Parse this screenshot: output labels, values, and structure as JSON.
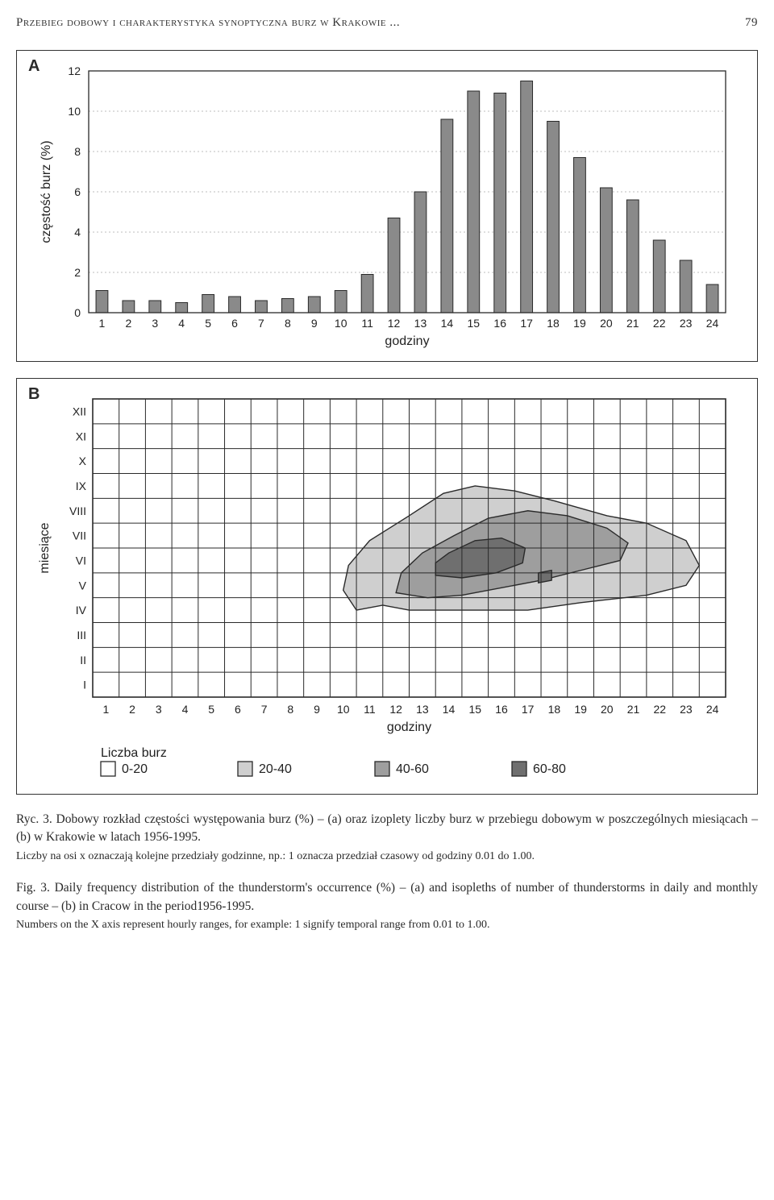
{
  "header": {
    "title": "Przebieg dobowy i charakterystyka synoptyczna burz w Krakowie ...",
    "page_number": "79"
  },
  "panelA": {
    "label": "A",
    "type": "bar",
    "ylabel": "częstość burz (%)",
    "xlabel": "godziny",
    "categories": [
      "1",
      "2",
      "3",
      "4",
      "5",
      "6",
      "7",
      "8",
      "9",
      "10",
      "11",
      "12",
      "13",
      "14",
      "15",
      "16",
      "17",
      "18",
      "19",
      "20",
      "21",
      "22",
      "23",
      "24"
    ],
    "values": [
      1.1,
      0.6,
      0.6,
      0.5,
      0.9,
      0.8,
      0.6,
      0.7,
      0.8,
      1.1,
      1.9,
      4.7,
      6.0,
      9.6,
      11.0,
      10.9,
      11.5,
      9.5,
      7.7,
      6.2,
      5.6,
      3.6,
      2.6,
      1.4
    ],
    "ylim": [
      0,
      12
    ],
    "ytick_step": 2,
    "bar_color": "#8a8a8a",
    "bar_border": "#2a2a2a",
    "grid_color": "#bdbdbd",
    "background_color": "#ffffff",
    "bar_width": 0.45,
    "label_fontsize": 16,
    "tick_fontsize": 14
  },
  "panelB": {
    "label": "B",
    "type": "contour",
    "ylabel": "miesiące",
    "xlabel": "godziny",
    "x_categories": [
      "1",
      "2",
      "3",
      "4",
      "5",
      "6",
      "7",
      "8",
      "9",
      "10",
      "11",
      "12",
      "13",
      "14",
      "15",
      "16",
      "17",
      "18",
      "19",
      "20",
      "21",
      "22",
      "23",
      "24"
    ],
    "y_categories": [
      "I",
      "II",
      "III",
      "IV",
      "V",
      "VI",
      "VII",
      "VIII",
      "IX",
      "X",
      "XI",
      "XII"
    ],
    "legend_title": "Liczba burz",
    "legend_items": [
      {
        "label": "0-20",
        "fill": "#ffffff",
        "stroke": "#2a2a2a"
      },
      {
        "label": "20-40",
        "fill": "#cfcfcf",
        "stroke": "#2a2a2a"
      },
      {
        "label": "40-60",
        "fill": "#9e9e9e",
        "stroke": "#2a2a2a"
      },
      {
        "label": "60-80",
        "fill": "#6f6f6f",
        "stroke": "#2a2a2a"
      }
    ],
    "grid_color": "#2a2a2a",
    "background_color": "#ffffff",
    "contours": [
      {
        "level": "20-40",
        "fill": "#cfcfcf",
        "stroke": "#2a2a2a",
        "points": [
          [
            10.5,
            4.0
          ],
          [
            11.5,
            4.2
          ],
          [
            12.5,
            4.0
          ],
          [
            13.5,
            4.0
          ],
          [
            15.0,
            4.0
          ],
          [
            17.0,
            4.0
          ],
          [
            19.0,
            4.3
          ],
          [
            21.5,
            4.6
          ],
          [
            23.0,
            5.0
          ],
          [
            23.5,
            5.8
          ],
          [
            23.0,
            6.8
          ],
          [
            21.5,
            7.5
          ],
          [
            20.0,
            7.8
          ],
          [
            18.0,
            8.4
          ],
          [
            16.5,
            8.8
          ],
          [
            15.0,
            9.0
          ],
          [
            13.8,
            8.7
          ],
          [
            12.5,
            7.8
          ],
          [
            11.0,
            6.8
          ],
          [
            10.2,
            5.8
          ],
          [
            10.0,
            4.8
          ]
        ]
      },
      {
        "level": "40-60",
        "fill": "#9e9e9e",
        "stroke": "#2a2a2a",
        "points": [
          [
            12.0,
            4.7
          ],
          [
            13.2,
            4.5
          ],
          [
            14.5,
            4.6
          ],
          [
            16.0,
            4.9
          ],
          [
            17.5,
            5.2
          ],
          [
            19.0,
            5.6
          ],
          [
            20.5,
            6.0
          ],
          [
            20.8,
            6.7
          ],
          [
            20.0,
            7.3
          ],
          [
            18.5,
            7.8
          ],
          [
            17.0,
            8.0
          ],
          [
            15.5,
            7.7
          ],
          [
            14.2,
            7.0
          ],
          [
            13.0,
            6.3
          ],
          [
            12.2,
            5.5
          ]
        ]
      },
      {
        "level": "60-80",
        "fill": "#6f6f6f",
        "stroke": "#2a2a2a",
        "points": [
          [
            13.5,
            5.4
          ],
          [
            14.5,
            5.3
          ],
          [
            15.8,
            5.5
          ],
          [
            16.8,
            5.9
          ],
          [
            16.9,
            6.5
          ],
          [
            16.0,
            6.9
          ],
          [
            15.0,
            6.8
          ],
          [
            14.0,
            6.3
          ],
          [
            13.5,
            5.9
          ]
        ]
      },
      {
        "level": "60-80b",
        "fill": "#6f6f6f",
        "stroke": "#2a2a2a",
        "points": [
          [
            17.4,
            5.1
          ],
          [
            17.9,
            5.2
          ],
          [
            17.9,
            5.6
          ],
          [
            17.4,
            5.5
          ]
        ]
      }
    ],
    "label_fontsize": 16,
    "tick_fontsize": 14
  },
  "captions": {
    "pl_main": "Ryc. 3. Dobowy rozkład częstości występowania burz (%) – (a) oraz izoplety liczby burz w przebiegu dobowym w poszczególnych miesiącach – (b) w Krakowie w latach 1956-1995.",
    "pl_note": "Liczby na osi x oznaczają kolejne przedziały godzinne, np.: 1 oznacza przedział czasowy od godziny 0.01 do 1.00.",
    "en_main": "Fig. 3. Daily frequency distribution of the thunderstorm's occurrence (%) – (a) and isopleths of number of thunderstorms in daily and monthly course – (b) in Cracow in the period1956-1995.",
    "en_note": "Numbers on the X axis represent hourly ranges, for example: 1 signify temporal range from 0.01 to 1.00."
  }
}
